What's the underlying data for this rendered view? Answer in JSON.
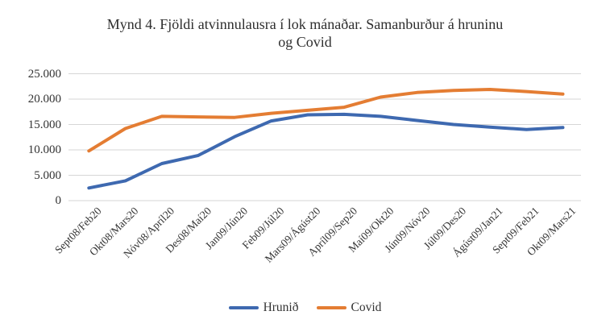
{
  "chart_data": {
    "type": "line",
    "title": "Mynd 4. Fjöldi atvinnulausra í lok mánaðar. Samanburður á hruninu og Covid",
    "categories": [
      "Sept08/Feb20",
      "Okt08/Mars20",
      "Nóv08/Apríl20",
      "Des08/Maí20",
      "Jan09/Jún20",
      "Feb09/Júl20",
      "Mars09/Ágúst20",
      "Apríl09/Sep20",
      "Maí09/Okt20",
      "Jún09/Nóv20",
      "Júl09/Des20",
      "Ágúst09/Jan21",
      "Sept09/Feb21",
      "Okt09/Mars21"
    ],
    "series": [
      {
        "name": "Hrunið",
        "color": "#3E69B0",
        "values": [
          2500,
          3900,
          7300,
          8900,
          12600,
          15700,
          16900,
          17000,
          16600,
          15800,
          15000,
          14500,
          14000,
          14400
        ]
      },
      {
        "name": "Covid",
        "color": "#E47D33",
        "values": [
          9800,
          14200,
          16600,
          16500,
          16400,
          17200,
          17800,
          18400,
          20400,
          21300,
          21700,
          21900,
          21500,
          21000
        ]
      }
    ],
    "ylim": [
      0,
      25000
    ],
    "ytick_interval": 5000,
    "ytick_labels": [
      "0",
      "5.000",
      "10.000",
      "15.000",
      "20.000",
      "25.000"
    ],
    "xlabel": "",
    "ylabel": "",
    "grid": true,
    "gridline_color": "#d6d6d6",
    "legend_position": "bottom",
    "x_tick_rotation_deg": -45
  }
}
